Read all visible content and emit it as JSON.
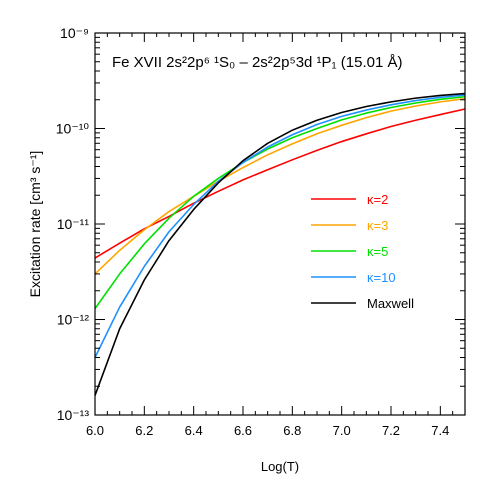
{
  "chart_data": {
    "type": "line",
    "title": "Fe XVII 2s²2p⁶ ¹S₀ – 2s²2p⁵3d ¹P₁ (15.01 Å)",
    "xlabel": "Log(T)",
    "ylabel": "Excitation rate  [cm³ s⁻¹]",
    "xlim": [
      6.0,
      7.5
    ],
    "ylim": [
      1e-13,
      1e-09
    ],
    "yscale": "log",
    "x_ticks": [
      "6.0",
      "6.2",
      "6.4",
      "6.6",
      "6.8",
      "7.0",
      "7.2",
      "7.4"
    ],
    "y_ticks": [
      "10⁻¹³",
      "10⁻¹²",
      "10⁻¹¹",
      "10⁻¹⁰",
      "10⁻⁹"
    ],
    "legend_position": "right-center",
    "x": [
      6.0,
      6.1,
      6.2,
      6.3,
      6.4,
      6.5,
      6.6,
      6.7,
      6.8,
      6.9,
      7.0,
      7.1,
      7.2,
      7.3,
      7.4,
      7.5
    ],
    "series": [
      {
        "name": "κ=2",
        "color": "#ff0000",
        "values": [
          4.4e-12,
          6.3e-12,
          8.9e-12,
          1.2e-11,
          1.65e-11,
          2.2e-11,
          2.9e-11,
          3.7e-11,
          4.7e-11,
          5.9e-11,
          7.3e-11,
          8.8e-11,
          1.05e-10,
          1.22e-10,
          1.4e-10,
          1.6e-10
        ]
      },
      {
        "name": "κ=3",
        "color": "#ffa500",
        "values": [
          3e-12,
          5.3e-12,
          8.7e-12,
          1.35e-11,
          1.95e-11,
          2.8e-11,
          3.9e-11,
          5.3e-11,
          6.9e-11,
          8.8e-11,
          1.08e-10,
          1.3e-10,
          1.52e-10,
          1.72e-10,
          1.9e-10,
          2.05e-10
        ]
      },
      {
        "name": "κ=5",
        "color": "#00e000",
        "values": [
          1.3e-12,
          3e-12,
          6.2e-12,
          1.15e-11,
          1.95e-11,
          3e-11,
          4.4e-11,
          6.1e-11,
          8e-11,
          1e-10,
          1.23e-10,
          1.45e-10,
          1.66e-10,
          1.85e-10,
          2.02e-10,
          2.15e-10
        ]
      },
      {
        "name": "κ=10",
        "color": "#1e90ff",
        "values": [
          4e-13,
          1.35e-12,
          3.6e-12,
          8.3e-12,
          1.6e-11,
          2.8e-11,
          4.4e-11,
          6.4e-11,
          8.6e-11,
          1.1e-10,
          1.34e-10,
          1.56e-10,
          1.77e-10,
          1.96e-10,
          2.12e-10,
          2.24e-10
        ]
      },
      {
        "name": "Maxwell",
        "color": "#000000",
        "values": [
          1.6e-13,
          8e-13,
          2.6e-12,
          6.7e-12,
          1.42e-11,
          2.7e-11,
          4.6e-11,
          7e-11,
          9.6e-11,
          1.22e-10,
          1.47e-10,
          1.7e-10,
          1.9e-10,
          2.08e-10,
          2.22e-10,
          2.32e-10
        ]
      }
    ]
  }
}
